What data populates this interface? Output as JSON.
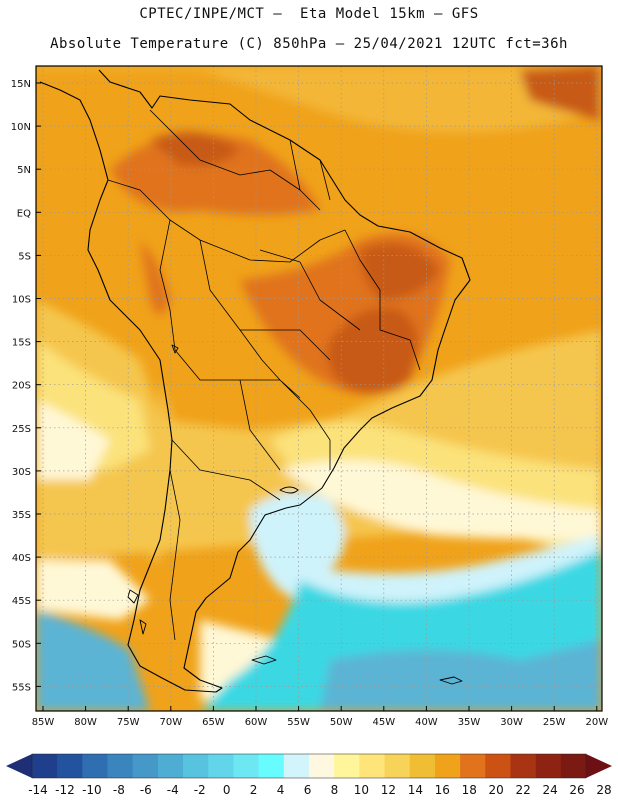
{
  "header": {
    "line1": "CPTEC/INPE/MCT –  Eta Model 15km – GFS",
    "line2": "Absolute Temperature (C) 850hPa – 25/04/2021 12UTC fct=36h"
  },
  "map": {
    "latitude_labels": [
      "15N",
      "10N",
      "5N",
      "EQ",
      "5S",
      "10S",
      "15S",
      "20S",
      "25S",
      "30S",
      "35S",
      "40S",
      "45S",
      "50S",
      "55S"
    ],
    "longitude_labels": [
      "85W",
      "80W",
      "75W",
      "70W",
      "65W",
      "60W",
      "55W",
      "50W",
      "45W",
      "40W",
      "35W",
      "30W",
      "25W",
      "20W"
    ],
    "colors": {
      "land_base": "#f0a21a",
      "hot": "#e0731c",
      "hottest": "#c75a18",
      "warm_light": "#f5c64e",
      "mild": "#fbe27a",
      "pale": "#fff8d6",
      "cool": "#cff3fb",
      "cold": "#3ad8e4",
      "colder": "#5cb4d4",
      "coast": "#000000"
    }
  },
  "colorbar": {
    "labels": [
      "-14",
      "-12",
      "-10",
      "-8",
      "-6",
      "-4",
      "-2",
      "0",
      "2",
      "4",
      "6",
      "8",
      "10",
      "12",
      "14",
      "16",
      "18",
      "20",
      "22",
      "24",
      "26",
      "28"
    ],
    "colors": [
      "#1f3e8c",
      "#23539e",
      "#2f6fb1",
      "#3b85bf",
      "#4698c9",
      "#4dadd3",
      "#57c3de",
      "#63d5ea",
      "#6de7f2",
      "#67fcff",
      "#d2f4fb",
      "#fff8e0",
      "#fff59a",
      "#ffe47a",
      "#f8d35a",
      "#f0be35",
      "#f0a21a",
      "#e0731c",
      "#cc5214",
      "#a93414",
      "#8e2313",
      "#7a1a12"
    ],
    "low_arrow_color": "#1e2f75",
    "high_arrow_color": "#6e0f14"
  }
}
